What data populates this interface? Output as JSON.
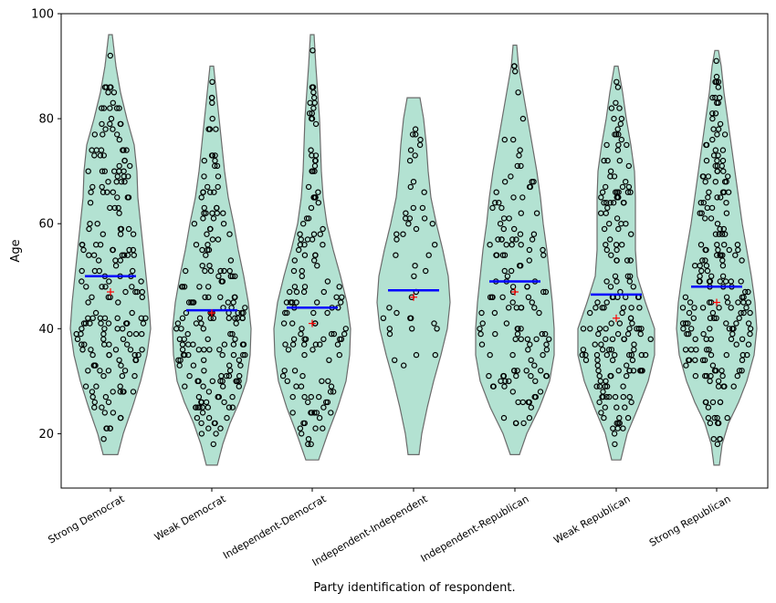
{
  "chart_data": {
    "type": "violin",
    "title": "",
    "xlabel": "Party identification of respondent.",
    "ylabel": "Age",
    "ylim": [
      9.5,
      100
    ],
    "yticks": [
      20,
      40,
      60,
      80,
      100
    ],
    "grid": false,
    "legend": null,
    "colors": {
      "violin_fill": "#b3e2d2",
      "violin_edge": "#6b6b6b",
      "median_line": "#0000ff",
      "mean_marker": "#ff0000",
      "points_edge": "#000000"
    },
    "categories": [
      "Strong Democrat",
      "Weak Democrat",
      "Independent-Democrat",
      "Independent-Independent",
      "Independent-Republican",
      "Weak Republican",
      "Strong Republican"
    ],
    "series": [
      {
        "name": "Strong Democrat",
        "min": 16,
        "max": 96,
        "median": 50,
        "mean": 47,
        "n_points": 200,
        "profile": [
          [
            16,
            8
          ],
          [
            20,
            14
          ],
          [
            25,
            24
          ],
          [
            30,
            33
          ],
          [
            35,
            40
          ],
          [
            40,
            44
          ],
          [
            45,
            42
          ],
          [
            50,
            39
          ],
          [
            55,
            36
          ],
          [
            60,
            33
          ],
          [
            65,
            30
          ],
          [
            70,
            29
          ],
          [
            75,
            26
          ],
          [
            80,
            18
          ],
          [
            85,
            11
          ],
          [
            90,
            6
          ],
          [
            96,
            2
          ]
        ]
      },
      {
        "name": "Weak Democrat",
        "min": 14,
        "max": 90,
        "median": 43.5,
        "mean": 43,
        "n_points": 190,
        "profile": [
          [
            14,
            6
          ],
          [
            18,
            12
          ],
          [
            22,
            20
          ],
          [
            26,
            30
          ],
          [
            30,
            38
          ],
          [
            35,
            42
          ],
          [
            40,
            43
          ],
          [
            45,
            40
          ],
          [
            50,
            35
          ],
          [
            55,
            29
          ],
          [
            60,
            24
          ],
          [
            65,
            18
          ],
          [
            70,
            14
          ],
          [
            75,
            11
          ],
          [
            80,
            8
          ],
          [
            85,
            5
          ],
          [
            90,
            2
          ]
        ]
      },
      {
        "name": "Independent-Democrat",
        "min": 15,
        "max": 96,
        "median": 44,
        "mean": 41,
        "n_points": 140,
        "profile": [
          [
            15,
            7
          ],
          [
            20,
            17
          ],
          [
            25,
            28
          ],
          [
            30,
            37
          ],
          [
            35,
            41
          ],
          [
            40,
            42
          ],
          [
            45,
            38
          ],
          [
            50,
            31
          ],
          [
            55,
            23
          ],
          [
            60,
            16
          ],
          [
            65,
            12
          ],
          [
            70,
            10
          ],
          [
            75,
            9
          ],
          [
            80,
            8
          ],
          [
            85,
            6
          ],
          [
            90,
            4
          ],
          [
            96,
            2
          ]
        ]
      },
      {
        "name": "Independent-Independent",
        "min": 16,
        "max": 84,
        "median": 47.3,
        "mean": 46,
        "n_points": 45,
        "profile": [
          [
            16,
            6
          ],
          [
            20,
            9
          ],
          [
            25,
            15
          ],
          [
            30,
            22
          ],
          [
            35,
            30
          ],
          [
            40,
            37
          ],
          [
            45,
            40
          ],
          [
            50,
            38
          ],
          [
            55,
            32
          ],
          [
            60,
            25
          ],
          [
            65,
            19
          ],
          [
            70,
            16
          ],
          [
            75,
            14
          ],
          [
            80,
            11
          ],
          [
            84,
            7
          ]
        ]
      },
      {
        "name": "Independent-Republican",
        "min": 16,
        "max": 94,
        "median": 49,
        "mean": 47,
        "n_points": 140,
        "profile": [
          [
            16,
            5
          ],
          [
            20,
            13
          ],
          [
            25,
            27
          ],
          [
            30,
            38
          ],
          [
            35,
            43
          ],
          [
            40,
            43
          ],
          [
            45,
            41
          ],
          [
            50,
            38
          ],
          [
            55,
            35
          ],
          [
            60,
            31
          ],
          [
            65,
            28
          ],
          [
            70,
            24
          ],
          [
            75,
            19
          ],
          [
            80,
            14
          ],
          [
            85,
            9
          ],
          [
            90,
            4
          ],
          [
            94,
            2
          ]
        ]
      },
      {
        "name": "Weak Republican",
        "min": 15,
        "max": 90,
        "median": 46.5,
        "mean": 42,
        "n_points": 180,
        "profile": [
          [
            15,
            5
          ],
          [
            20,
            12
          ],
          [
            25,
            24
          ],
          [
            30,
            35
          ],
          [
            35,
            42
          ],
          [
            40,
            42
          ],
          [
            45,
            32
          ],
          [
            50,
            23
          ],
          [
            55,
            21
          ],
          [
            60,
            21
          ],
          [
            65,
            21
          ],
          [
            70,
            20
          ],
          [
            75,
            16
          ],
          [
            80,
            11
          ],
          [
            85,
            7
          ],
          [
            90,
            2
          ]
        ]
      },
      {
        "name": "Strong Republican",
        "min": 14,
        "max": 93,
        "median": 48,
        "mean": 45,
        "n_points": 210,
        "profile": [
          [
            14,
            3
          ],
          [
            18,
            6
          ],
          [
            22,
            13
          ],
          [
            26,
            24
          ],
          [
            30,
            33
          ],
          [
            35,
            41
          ],
          [
            40,
            44
          ],
          [
            45,
            42
          ],
          [
            50,
            38
          ],
          [
            55,
            33
          ],
          [
            60,
            28
          ],
          [
            65,
            24
          ],
          [
            70,
            20
          ],
          [
            75,
            16
          ],
          [
            80,
            12
          ],
          [
            85,
            8
          ],
          [
            90,
            5
          ],
          [
            93,
            2
          ]
        ]
      }
    ]
  }
}
